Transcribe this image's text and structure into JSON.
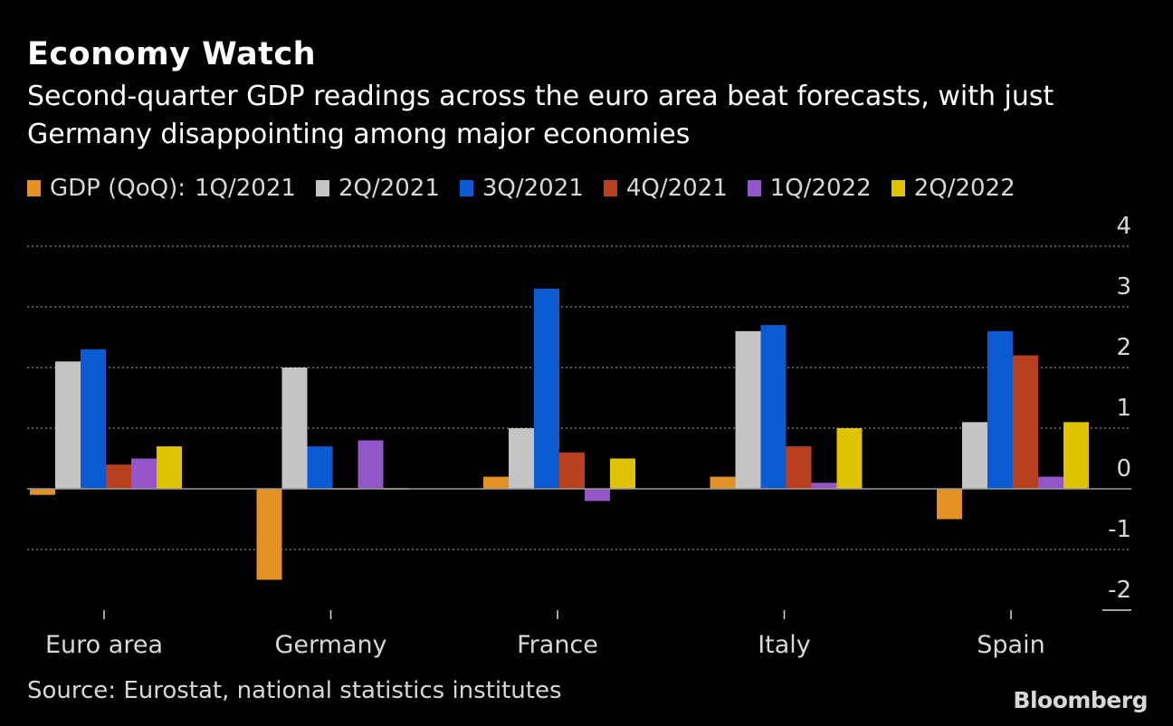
{
  "title": "Economy Watch",
  "subtitle": "Second-quarter GDP readings across the euro area beat forecasts, with just Germany disappointing among major economies",
  "legend": {
    "prefix": "GDP (QoQ):"
  },
  "source": "Source: Eurostat, national statistics institutes",
  "brand": "Bloomberg",
  "chart_data": {
    "type": "bar",
    "title": "Economy Watch",
    "subtitle": "Second-quarter GDP readings across the euro area beat forecasts, with just Germany disappointing among major economies",
    "xlabel": "",
    "ylabel": "GDP (QoQ)",
    "ylim": [
      -2,
      4
    ],
    "yticks": [
      4,
      3,
      2,
      1,
      0,
      -1,
      -2
    ],
    "ytick_labels": [
      "4",
      "3",
      "2",
      "1",
      "0",
      "-1",
      "-2"
    ],
    "y_axis_side": "right",
    "grid": true,
    "legend_position": "top-left",
    "categories": [
      "Euro area",
      "Germany",
      "France",
      "Italy",
      "Spain"
    ],
    "series": [
      {
        "name": "1Q/2021",
        "color": "#e39124",
        "values": [
          -0.1,
          -1.5,
          0.2,
          0.2,
          -0.5
        ]
      },
      {
        "name": "2Q/2021",
        "color": "#c4c4c4",
        "values": [
          2.1,
          2.0,
          1.0,
          2.6,
          1.1
        ]
      },
      {
        "name": "3Q/2021",
        "color": "#0a5bd1",
        "values": [
          2.3,
          0.7,
          3.3,
          2.7,
          2.6
        ]
      },
      {
        "name": "4Q/2021",
        "color": "#b8401e",
        "values": [
          0.4,
          -0.02,
          0.6,
          0.7,
          2.2
        ]
      },
      {
        "name": "1Q/2022",
        "color": "#9455c9",
        "values": [
          0.5,
          0.8,
          -0.2,
          0.1,
          0.2
        ]
      },
      {
        "name": "2Q/2022",
        "color": "#e0c300",
        "values": [
          0.7,
          -0.02,
          0.5,
          1.0,
          1.1
        ]
      }
    ]
  }
}
